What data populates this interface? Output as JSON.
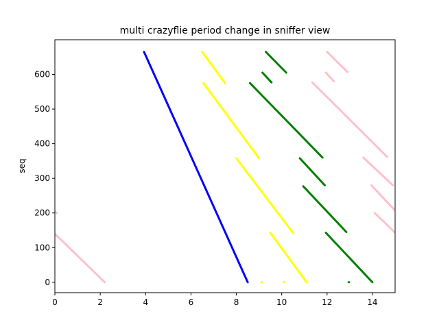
{
  "chart_data": {
    "type": "line",
    "title": "multi crazyflie period change in sniffer view",
    "xlabel": "",
    "ylabel": "seq",
    "xlim": [
      0,
      15
    ],
    "ylim": [
      -30,
      700
    ],
    "x_ticks": [
      0,
      2,
      4,
      6,
      8,
      10,
      12,
      14
    ],
    "y_ticks": [
      0,
      100,
      200,
      300,
      400,
      500,
      600
    ],
    "grid": false,
    "legend": "none",
    "series": [
      {
        "color": "#0000ff",
        "segments": [
          {
            "x": [
              3.93,
              8.5
            ],
            "y": [
              665,
              0
            ]
          }
        ]
      },
      {
        "color": "#ffff00",
        "segments": [
          {
            "x": [
              6.5,
              7.5
            ],
            "y": [
              665,
              575
            ]
          },
          {
            "x": [
              6.55,
              9.0
            ],
            "y": [
              575,
              358
            ]
          },
          {
            "x": [
              8.0,
              10.5
            ],
            "y": [
              358,
              143
            ]
          },
          {
            "x": [
              9.5,
              11.1
            ],
            "y": [
              143,
              0
            ]
          },
          {
            "x": [
              9.1,
              9.12
            ],
            "y": [
              0,
              0
            ]
          },
          {
            "x": [
              10.1,
              10.12
            ],
            "y": [
              0,
              0
            ]
          }
        ]
      },
      {
        "color": "#008000",
        "segments": [
          {
            "x": [
              9.3,
              10.2
            ],
            "y": [
              665,
              605
            ]
          },
          {
            "x": [
              9.15,
              9.55
            ],
            "y": [
              605,
              577
            ]
          },
          {
            "x": [
              8.6,
              11.8
            ],
            "y": [
              575,
              360
            ]
          },
          {
            "x": [
              10.8,
              11.9
            ],
            "y": [
              358,
              280
            ]
          },
          {
            "x": [
              10.95,
              12.85
            ],
            "y": [
              277,
              145
            ]
          },
          {
            "x": [
              11.95,
              14.0
            ],
            "y": [
              143,
              0
            ]
          },
          {
            "x": [
              12.95,
              12.97
            ],
            "y": [
              0,
              0
            ]
          }
        ]
      },
      {
        "color": "#ffc0cb",
        "segments": [
          {
            "x": [
              0,
              2.2
            ],
            "y": [
              140,
              0
            ]
          },
          {
            "x": [
              0,
              0.08
            ],
            "y": [
              205,
              200
            ]
          },
          {
            "x": [
              12.0,
              12.9
            ],
            "y": [
              665,
              607
            ]
          },
          {
            "x": [
              11.95,
              12.3
            ],
            "y": [
              605,
              580
            ]
          },
          {
            "x": [
              11.35,
              14.65
            ],
            "y": [
              577,
              362
            ]
          },
          {
            "x": [
              13.6,
              14.9
            ],
            "y": [
              360,
              280
            ]
          },
          {
            "x": [
              13.95,
              15.0
            ],
            "y": [
              280,
              207
            ]
          },
          {
            "x": [
              14.1,
              15.0
            ],
            "y": [
              200,
              143
            ]
          }
        ]
      }
    ]
  }
}
